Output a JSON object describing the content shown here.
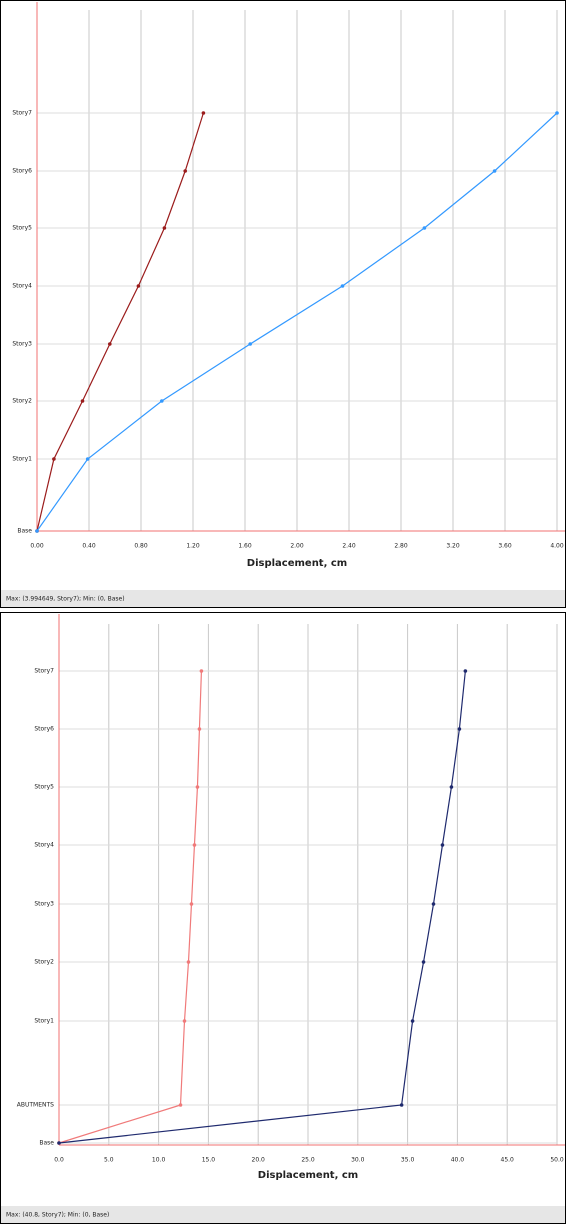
{
  "chart_data": [
    {
      "type": "line",
      "xlabel": "Displacement, cm",
      "footer": "Max: (3.994649, Story7); Min: (0, Base)",
      "categories": [
        "Base",
        "Story1",
        "Story2",
        "Story3",
        "Story4",
        "Story5",
        "Story6",
        "Story7"
      ],
      "series": [
        {
          "color": "#9b1c1c",
          "values": [
            0,
            0.13,
            0.35,
            0.56,
            0.78,
            0.98,
            1.14,
            1.28
          ]
        },
        {
          "color": "#3399ff",
          "values": [
            0,
            0.39,
            0.96,
            1.64,
            2.35,
            2.98,
            3.52,
            4.0
          ]
        }
      ],
      "xlim": [
        0,
        4
      ],
      "xticks": [
        {
          "value": 0,
          "label": "0.00"
        },
        {
          "value": 0.4,
          "label": "0.40"
        },
        {
          "value": 0.8,
          "label": "0.80"
        },
        {
          "value": 1.2,
          "label": "1.20"
        },
        {
          "value": 1.6,
          "label": "1.60"
        },
        {
          "value": 2,
          "label": "2.00"
        },
        {
          "value": 2.4,
          "label": "2.40"
        },
        {
          "value": 2.8,
          "label": "2.80"
        },
        {
          "value": 3.2,
          "label": "3.20"
        },
        {
          "value": 3.6,
          "label": "3.60"
        },
        {
          "value": 4,
          "label": "4.00"
        }
      ],
      "grid": true
    },
    {
      "type": "line",
      "xlabel": "Displacement, cm",
      "footer": "Max: (40.8, Story7); Min: (0, Base)",
      "categories": [
        "Base",
        "ABUTMENTS",
        "Story1",
        "Story2",
        "Story3",
        "Story4",
        "Story5",
        "Story6",
        "Story7"
      ],
      "series": [
        {
          "color": "#f07a7a",
          "values": [
            0,
            12.2,
            12.6,
            13.0,
            13.3,
            13.6,
            13.9,
            14.1,
            14.3
          ]
        },
        {
          "color": "#1f2a6e",
          "values": [
            0,
            34.4,
            35.5,
            36.6,
            37.6,
            38.5,
            39.4,
            40.2,
            40.8
          ]
        }
      ],
      "xlim": [
        0,
        50
      ],
      "xticks": [
        {
          "value": 0,
          "label": "0.0"
        },
        {
          "value": 5,
          "label": "5.0"
        },
        {
          "value": 10,
          "label": "10.0"
        },
        {
          "value": 15,
          "label": "15.0"
        },
        {
          "value": 20,
          "label": "20.0"
        },
        {
          "value": 25,
          "label": "25.0"
        },
        {
          "value": 30,
          "label": "30.0"
        },
        {
          "value": 35,
          "label": "35.0"
        },
        {
          "value": 40,
          "label": "40.0"
        },
        {
          "value": 45,
          "label": "45.0"
        },
        {
          "value": 50,
          "label": "50.0"
        }
      ],
      "grid": true
    }
  ]
}
